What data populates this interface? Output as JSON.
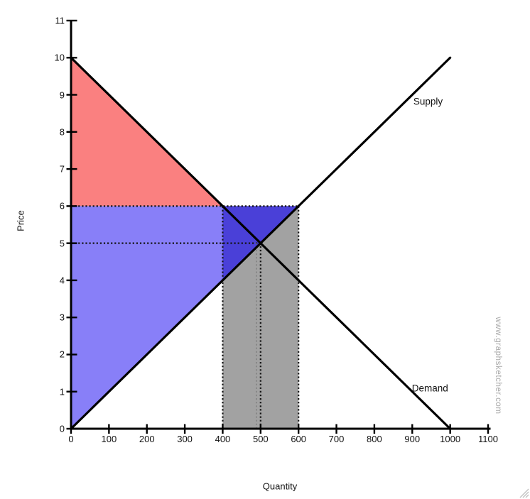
{
  "chart_data": {
    "type": "line",
    "title": "",
    "xlabel": "Quantity",
    "ylabel": "Price",
    "xlim": [
      0,
      1100
    ],
    "ylim": [
      0,
      11
    ],
    "grid": false,
    "legend": "none",
    "xticks": [
      0,
      100,
      200,
      300,
      400,
      500,
      600,
      700,
      800,
      900,
      1000,
      1100
    ],
    "yticks": [
      0,
      1,
      2,
      3,
      4,
      5,
      6,
      7,
      8,
      9,
      10,
      11
    ],
    "equilibrium": {
      "quantity": 500,
      "price": 5
    },
    "series": [
      {
        "name": "Supply",
        "color": "#000000",
        "points": [
          [
            0,
            0
          ],
          [
            1000,
            10
          ]
        ],
        "label_anchor": [
          903,
          8.82
        ]
      },
      {
        "name": "Demand",
        "color": "#000000",
        "points": [
          [
            0,
            10
          ],
          [
            1000,
            0
          ]
        ],
        "label_anchor": [
          899,
          1.1
        ]
      }
    ],
    "regions": [
      {
        "name": "red-surplus-region",
        "color": "#fa8080",
        "points": [
          [
            0,
            10
          ],
          [
            0,
            6
          ],
          [
            400,
            6
          ]
        ]
      },
      {
        "name": "blue-surplus-region",
        "color": "#887ff8",
        "points": [
          [
            0,
            0
          ],
          [
            0,
            6
          ],
          [
            600,
            6
          ]
        ]
      },
      {
        "name": "gray-highlight-region",
        "color": "#a2a2a2",
        "points": [
          [
            400,
            0
          ],
          [
            400,
            6
          ],
          [
            600,
            6
          ],
          [
            600,
            0
          ]
        ]
      },
      {
        "name": "dark-blue-overlap-region",
        "color": "#4a40d8",
        "points": [
          [
            400,
            4
          ],
          [
            400,
            6
          ],
          [
            600,
            6
          ]
        ]
      }
    ],
    "guides": [
      {
        "axis": "h",
        "value": 6,
        "from": 0,
        "to": 600,
        "style": "bold"
      },
      {
        "axis": "h",
        "value": 5,
        "from": 0,
        "to": 500,
        "style": "bold"
      },
      {
        "axis": "v",
        "value": 400,
        "from": 0,
        "to": 6,
        "style": "bold"
      },
      {
        "axis": "v",
        "value": 489,
        "from": 0,
        "to": 5,
        "style": "faint"
      },
      {
        "axis": "v",
        "value": 500,
        "from": 0,
        "to": 5,
        "style": "bold"
      },
      {
        "axis": "v",
        "value": 600,
        "from": 0,
        "to": 6,
        "style": "bold"
      }
    ],
    "colors": {
      "axis": "#000000",
      "guide_bold": "#141414",
      "guide_faint": "#818181",
      "tick_text": "#111111",
      "watermark": "#a9a9a9"
    },
    "watermark": "www.graphsketcher.com"
  }
}
